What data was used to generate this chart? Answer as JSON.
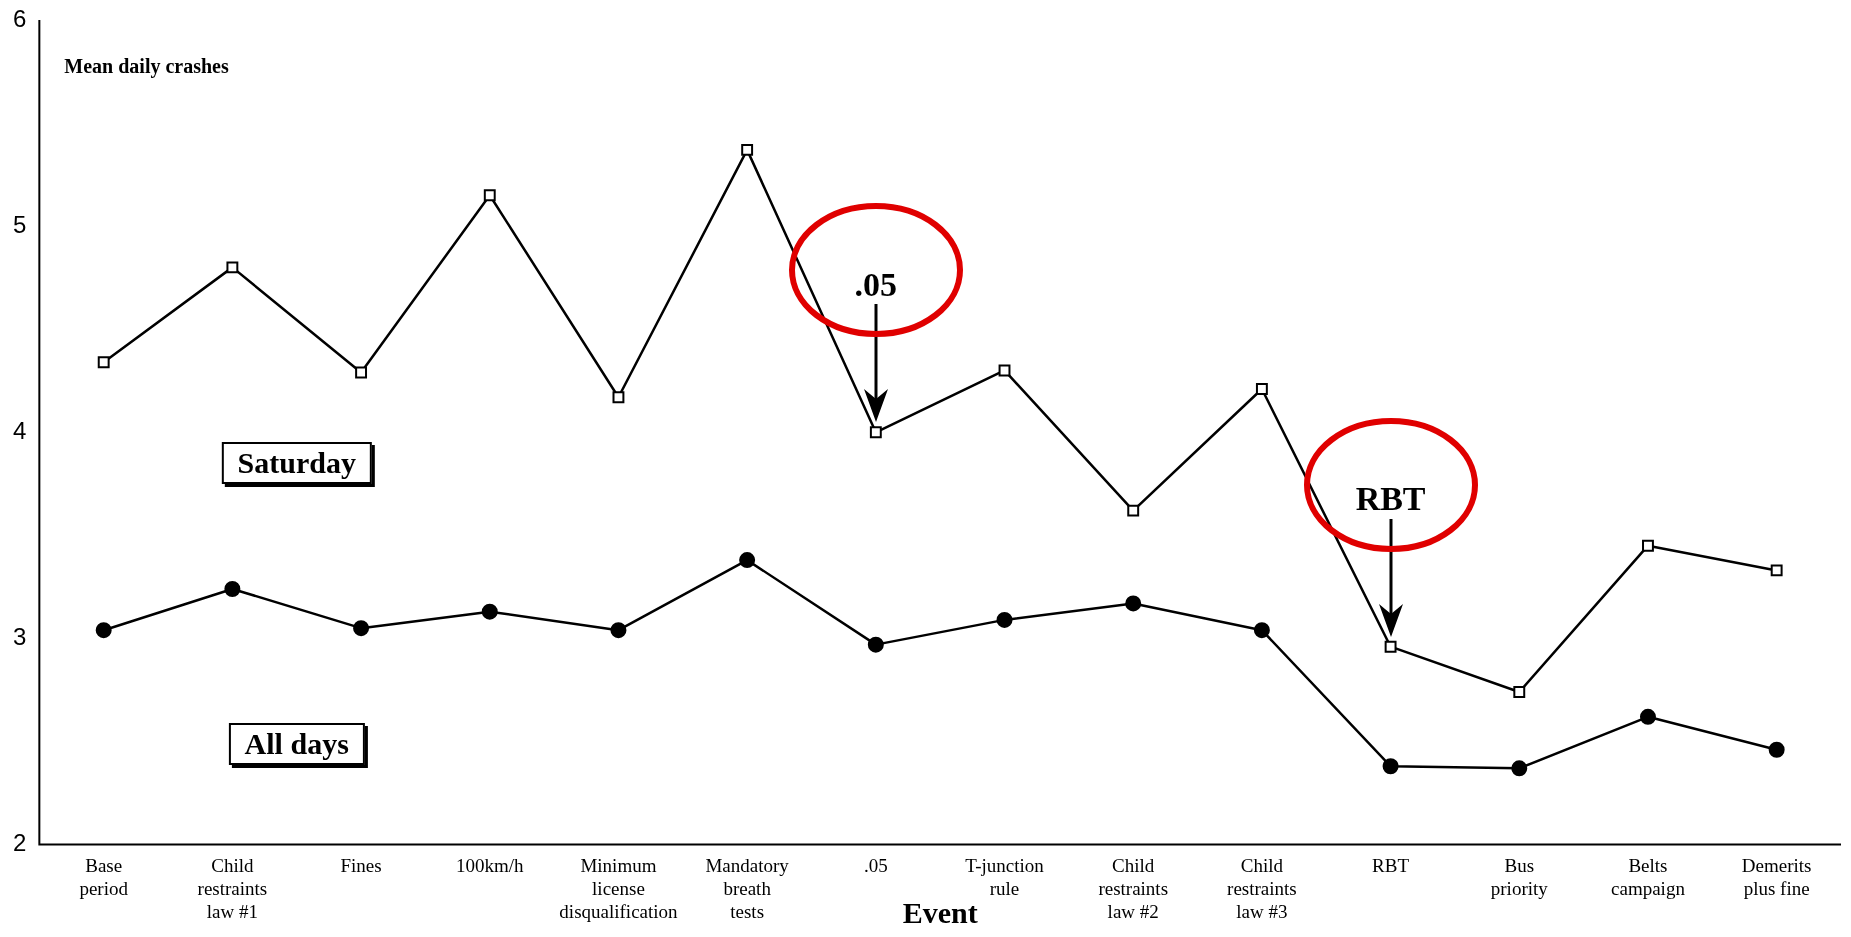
{
  "chart_data": {
    "type": "line",
    "ylabel": "Mean daily crashes",
    "xlabel": "Event",
    "categories": [
      "Base period",
      "Child restraints law #1",
      "Fines",
      "100km/h",
      "Minimum license disqualification",
      "Mandatory breath tests",
      ".05",
      "T-junction rule",
      "Child restraints law #2",
      "Child restraints law #3",
      "RBT",
      "Bus priority",
      "Belts campaign",
      "Demerits plus fine"
    ],
    "series": [
      {
        "name": "Saturday",
        "color": "#000000",
        "marker": "square",
        "values": [
          4.34,
          4.8,
          4.29,
          5.15,
          4.17,
          5.37,
          4.0,
          4.3,
          3.62,
          4.21,
          2.96,
          2.74,
          3.45,
          3.33
        ]
      },
      {
        "name": "All days",
        "color": "#000000",
        "marker": "circle",
        "values": [
          3.04,
          3.24,
          3.05,
          3.13,
          3.04,
          3.38,
          2.97,
          3.09,
          3.17,
          3.04,
          2.38,
          2.37,
          2.62,
          2.46
        ]
      }
    ],
    "ylim": [
      2,
      6
    ],
    "yticks": [
      2,
      3,
      4,
      5,
      6
    ],
    "grid": false,
    "legend": false,
    "annotations": [
      ".05",
      "RBT"
    ]
  }
}
